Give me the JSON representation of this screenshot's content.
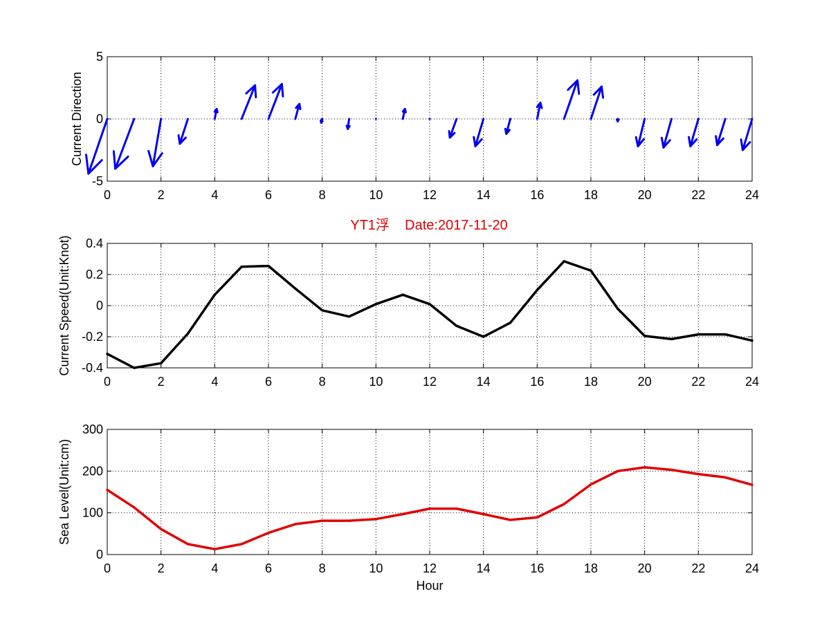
{
  "figure": {
    "title": "YT1浮    Date:2017-11-20",
    "title_color": "#e00000"
  },
  "chart_data": [
    {
      "type": "quiver",
      "ylabel": "Current Direction",
      "xlabel": "",
      "xlim": [
        0,
        24
      ],
      "ylim": [
        -5,
        5
      ],
      "xticks": [
        "0",
        "2",
        "4",
        "6",
        "8",
        "10",
        "12",
        "14",
        "16",
        "18",
        "20",
        "22",
        "24"
      ],
      "yticks": [
        "-5",
        "0",
        "5"
      ],
      "grid": true,
      "color": "#0000ee",
      "x": [
        0,
        1,
        2,
        3,
        4,
        5,
        6,
        7,
        8,
        9,
        10,
        11,
        12,
        13,
        14,
        15,
        16,
        17,
        18,
        19,
        20,
        21,
        22,
        23,
        24
      ],
      "u": [
        -0.7,
        -0.7,
        -0.3,
        -0.3,
        0.07,
        0.5,
        0.5,
        0.15,
        -0.04,
        -0.05,
        0.0,
        0.08,
        0.0,
        -0.25,
        -0.3,
        -0.15,
        0.12,
        0.5,
        0.4,
        0.0,
        -0.25,
        -0.3,
        -0.3,
        -0.3,
        -0.35
      ],
      "v": [
        -4.4,
        -4.0,
        -3.8,
        -2.0,
        0.8,
        2.7,
        2.8,
        1.2,
        -0.3,
        -0.8,
        -0.1,
        0.8,
        0.0,
        -1.5,
        -2.2,
        -1.2,
        1.3,
        3.1,
        2.6,
        -0.2,
        -2.2,
        -2.3,
        -2.2,
        -2.1,
        -2.5
      ]
    },
    {
      "type": "line",
      "ylabel": "Current Speed(Unit:Knot)",
      "xlabel": "",
      "xlim": [
        0,
        24
      ],
      "ylim": [
        -0.4,
        0.4
      ],
      "xticks": [
        "0",
        "2",
        "4",
        "6",
        "8",
        "10",
        "12",
        "14",
        "16",
        "18",
        "20",
        "22",
        "24"
      ],
      "yticks": [
        "-0.4",
        "-0.2",
        "0",
        "0.2",
        "0.4"
      ],
      "grid": true,
      "series": [
        {
          "color": "#000000",
          "x": [
            0,
            1,
            2,
            3,
            4,
            5,
            6,
            7,
            8,
            9,
            10,
            11,
            12,
            13,
            14,
            15,
            16,
            17,
            18,
            19,
            20,
            21,
            22,
            23,
            24
          ],
          "values": [
            -0.31,
            -0.4,
            -0.37,
            -0.18,
            0.07,
            0.25,
            0.255,
            0.11,
            -0.03,
            -0.07,
            0.01,
            0.07,
            0.01,
            -0.13,
            -0.2,
            -0.11,
            0.1,
            0.285,
            0.225,
            -0.02,
            -0.195,
            -0.215,
            -0.185,
            -0.185,
            -0.225
          ]
        }
      ]
    },
    {
      "type": "line",
      "ylabel": "Sea Level(Unit:cm)",
      "xlabel": "Hour",
      "xlim": [
        0,
        24
      ],
      "ylim": [
        0,
        300
      ],
      "xticks": [
        "0",
        "2",
        "4",
        "6",
        "8",
        "10",
        "12",
        "14",
        "16",
        "18",
        "20",
        "22",
        "24"
      ],
      "yticks": [
        "0",
        "100",
        "200",
        "300"
      ],
      "grid": true,
      "series": [
        {
          "color": "#e00000",
          "x": [
            0,
            1,
            2,
            3,
            4,
            5,
            6,
            7,
            8,
            9,
            10,
            11,
            12,
            13,
            14,
            15,
            16,
            17,
            18,
            19,
            20,
            21,
            22,
            23,
            24
          ],
          "values": [
            155,
            113,
            61,
            25,
            13,
            25,
            52,
            73,
            81,
            81,
            85,
            97,
            110,
            110,
            97,
            83,
            89,
            121,
            168,
            200,
            209,
            203,
            193,
            185,
            167
          ]
        }
      ]
    }
  ]
}
